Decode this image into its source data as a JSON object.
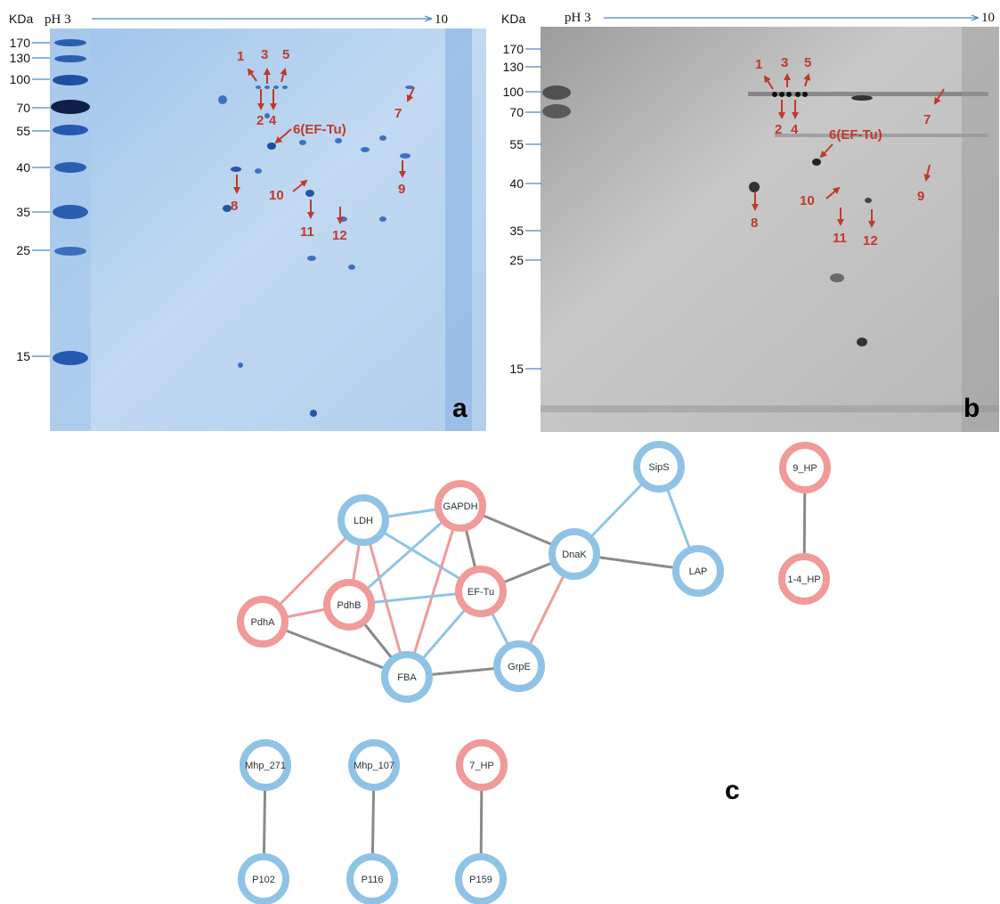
{
  "colors": {
    "red_node": "#F09A9A",
    "blue_node": "#8FC3E6",
    "edge_gray": "#8A8A8A",
    "edge_blue": "#8FC3E6",
    "edge_red": "#F09A9A",
    "arrow_red": "#C0392B",
    "axis_blue": "#4A86C5"
  },
  "panels": {
    "a": {
      "letter": "a",
      "kda_label": "KDa",
      "ph_start": "pH 3",
      "ph_end": "10",
      "markers": [
        "170",
        "130",
        "100",
        "70",
        "55",
        "40",
        "35",
        "25",
        "15"
      ],
      "spots": [
        "1",
        "2",
        "3",
        "4",
        "5",
        "6(EF-Tu)",
        "7",
        "8",
        "9",
        "10",
        "11",
        "12"
      ]
    },
    "b": {
      "letter": "b",
      "kda_label": "KDa",
      "ph_start": "pH 3",
      "ph_end": "10",
      "markers": [
        "170",
        "130",
        "100",
        "70",
        "55",
        "40",
        "35",
        "25",
        "15"
      ],
      "spots": [
        "1",
        "2",
        "3",
        "4",
        "5",
        "6(EF-Tu)",
        "7",
        "8",
        "9",
        "10",
        "11",
        "12"
      ]
    }
  },
  "network": {
    "letter": "c",
    "nodes": [
      {
        "id": "GAPDH",
        "label": "GAPDH",
        "group": "red"
      },
      {
        "id": "LDH",
        "label": "LDH",
        "group": "blue"
      },
      {
        "id": "SipS",
        "label": "SipS",
        "group": "blue"
      },
      {
        "id": "DnaK",
        "label": "DnaK",
        "group": "blue"
      },
      {
        "id": "LAP",
        "label": "LAP",
        "group": "blue"
      },
      {
        "id": "PdhB",
        "label": "PdhB",
        "group": "red"
      },
      {
        "id": "EF-Tu",
        "label": "EF-Tu",
        "group": "red"
      },
      {
        "id": "PdhA",
        "label": "PdhA",
        "group": "red"
      },
      {
        "id": "FBA",
        "label": "FBA",
        "group": "blue"
      },
      {
        "id": "GrpE",
        "label": "GrpE",
        "group": "blue"
      },
      {
        "id": "9_HP",
        "label": "9_HP",
        "group": "red"
      },
      {
        "id": "1-4_HP",
        "label": "1-4_HP",
        "group": "red"
      },
      {
        "id": "Mhp_271",
        "label": "Mhp_271",
        "group": "blue"
      },
      {
        "id": "P102",
        "label": "P102",
        "group": "blue"
      },
      {
        "id": "Mhp_107",
        "label": "Mhp_107",
        "group": "blue"
      },
      {
        "id": "P116",
        "label": "P116",
        "group": "blue"
      },
      {
        "id": "7_HP",
        "label": "7_HP",
        "group": "red"
      },
      {
        "id": "P159",
        "label": "P159",
        "group": "blue"
      }
    ],
    "edges": [
      {
        "source": "LDH",
        "target": "GAPDH",
        "color": "blue"
      },
      {
        "source": "LDH",
        "target": "EF-Tu",
        "color": "blue"
      },
      {
        "source": "LDH",
        "target": "PdhA",
        "color": "red"
      },
      {
        "source": "LDH",
        "target": "PdhB",
        "color": "red"
      },
      {
        "source": "LDH",
        "target": "FBA",
        "color": "red"
      },
      {
        "source": "GAPDH",
        "target": "PdhB",
        "color": "blue"
      },
      {
        "source": "GAPDH",
        "target": "FBA",
        "color": "red"
      },
      {
        "source": "GAPDH",
        "target": "EF-Tu",
        "color": "gray"
      },
      {
        "source": "GAPDH",
        "target": "DnaK",
        "color": "gray"
      },
      {
        "source": "PdhA",
        "target": "PdhB",
        "color": "red"
      },
      {
        "source": "PdhA",
        "target": "FBA",
        "color": "gray"
      },
      {
        "source": "PdhB",
        "target": "EF-Tu",
        "color": "blue"
      },
      {
        "source": "PdhB",
        "target": "FBA",
        "color": "gray"
      },
      {
        "source": "EF-Tu",
        "target": "FBA",
        "color": "blue"
      },
      {
        "source": "EF-Tu",
        "target": "GrpE",
        "color": "blue"
      },
      {
        "source": "EF-Tu",
        "target": "DnaK",
        "color": "gray"
      },
      {
        "source": "FBA",
        "target": "GrpE",
        "color": "gray"
      },
      {
        "source": "DnaK",
        "target": "GrpE",
        "color": "red"
      },
      {
        "source": "DnaK",
        "target": "SipS",
        "color": "blue"
      },
      {
        "source": "DnaK",
        "target": "LAP",
        "color": "gray"
      },
      {
        "source": "SipS",
        "target": "LAP",
        "color": "blue"
      },
      {
        "source": "9_HP",
        "target": "1-4_HP",
        "color": "gray"
      },
      {
        "source": "Mhp_271",
        "target": "P102",
        "color": "gray"
      },
      {
        "source": "Mhp_107",
        "target": "P116",
        "color": "gray"
      },
      {
        "source": "7_HP",
        "target": "P159",
        "color": "gray"
      }
    ]
  }
}
